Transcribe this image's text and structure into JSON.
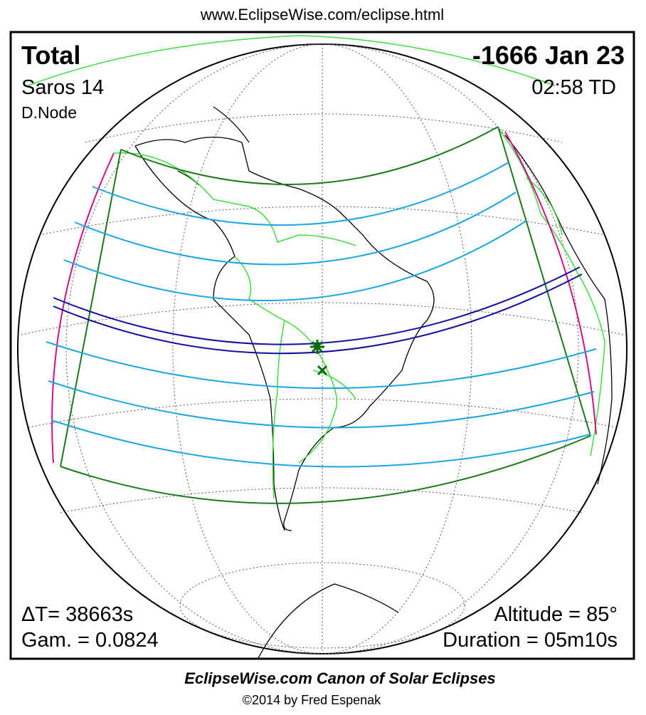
{
  "header": {
    "url": "www.EclipseWise.com/eclipse.html"
  },
  "panel": {
    "eclipse_type": "Total",
    "date": "-1666 Jan 23",
    "saros": "Saros  14",
    "time": "02:58 TD",
    "node": "D.Node",
    "delta_t": "ΔT=  38663s",
    "gamma": "Gam. = 0.0824",
    "altitude": "Altitude = 85°",
    "duration": "Duration = 05m10s"
  },
  "footer": {
    "title": "EclipseWise.com Canon of Solar Eclipses",
    "copyright": "©2014 by Fred Espenak"
  }
}
